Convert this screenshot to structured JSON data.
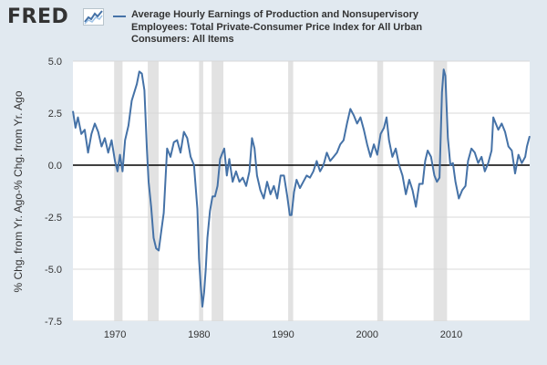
{
  "brand": {
    "logo_text": "FRED",
    "logo_icon": "fred-trend-line-icon"
  },
  "colors": {
    "line": "#4572a7",
    "recession": "#e2e2e2",
    "zero_line": "#000000",
    "plot_background": "#ffffff",
    "page_background": "#e1e9f0"
  },
  "chart_data": {
    "type": "line",
    "title": "",
    "xlabel": "",
    "ylabel": "% Chg. from Yr. Ago-% Chg. from Yr. Ago",
    "xlim": [
      1965.0,
      2019.33
    ],
    "ylim": [
      -7.5,
      5.0
    ],
    "x_ticks": [
      1970,
      1980,
      1990,
      2000,
      2010
    ],
    "x_tick_labels": [
      "1970",
      "1980",
      "1990",
      "2000",
      "2010"
    ],
    "y_ticks": [
      5.0,
      2.5,
      0.0,
      -2.5,
      -5.0,
      -7.5
    ],
    "y_tick_labels": [
      "5.0",
      "2.5",
      "0.0",
      "-2.5",
      "-5.0",
      "-7.5"
    ],
    "grid": "horizontal",
    "legend": "top",
    "reference_line": 0.0,
    "recessions": [
      [
        1969.9,
        1970.9
      ],
      [
        1973.9,
        1975.2
      ],
      [
        1980.0,
        1980.5
      ],
      [
        1981.5,
        1982.9
      ],
      [
        1990.6,
        1991.2
      ],
      [
        2001.2,
        2001.9
      ],
      [
        2007.9,
        2009.5
      ]
    ],
    "series": [
      {
        "name": "Average Hourly Earnings of Production and Nonsupervisory Employees: Total Private-Consumer Price Index for All Urban Consumers: All Items",
        "x": [
          1965.0,
          1965.3,
          1965.6,
          1966.0,
          1966.4,
          1966.8,
          1967.2,
          1967.6,
          1968.0,
          1968.4,
          1968.8,
          1969.2,
          1969.6,
          1970.0,
          1970.3,
          1970.6,
          1970.9,
          1971.2,
          1971.6,
          1972.0,
          1972.3,
          1972.6,
          1972.9,
          1973.2,
          1973.5,
          1973.8,
          1974.0,
          1974.3,
          1974.6,
          1974.9,
          1975.2,
          1975.5,
          1975.8,
          1976.2,
          1976.6,
          1977.0,
          1977.4,
          1977.8,
          1978.2,
          1978.6,
          1979.0,
          1979.4,
          1979.8,
          1980.0,
          1980.2,
          1980.4,
          1980.6,
          1980.8,
          1981.0,
          1981.3,
          1981.6,
          1981.9,
          1982.2,
          1982.5,
          1982.8,
          1983.0,
          1983.3,
          1983.6,
          1984.0,
          1984.4,
          1984.8,
          1985.2,
          1985.6,
          1986.0,
          1986.3,
          1986.6,
          1986.9,
          1987.3,
          1987.7,
          1988.1,
          1988.5,
          1988.9,
          1989.3,
          1989.7,
          1990.1,
          1990.5,
          1990.8,
          1991.0,
          1991.3,
          1991.6,
          1992.0,
          1992.4,
          1992.8,
          1993.2,
          1993.6,
          1994.0,
          1994.4,
          1994.8,
          1995.2,
          1995.6,
          1996.0,
          1996.4,
          1996.8,
          1997.2,
          1997.6,
          1998.0,
          1998.4,
          1998.8,
          1999.2,
          1999.6,
          2000.0,
          2000.4,
          2000.8,
          2001.2,
          2001.6,
          2002.0,
          2002.3,
          2002.6,
          2003.0,
          2003.4,
          2003.8,
          2004.2,
          2004.6,
          2005.0,
          2005.4,
          2005.8,
          2006.2,
          2006.6,
          2006.9,
          2007.2,
          2007.6,
          2008.0,
          2008.3,
          2008.6,
          2008.9,
          2009.1,
          2009.3,
          2009.6,
          2009.9,
          2010.2,
          2010.5,
          2010.9,
          2011.3,
          2011.7,
          2012.0,
          2012.4,
          2012.8,
          2013.2,
          2013.6,
          2014.0,
          2014.4,
          2014.8,
          2015.0,
          2015.3,
          2015.6,
          2016.0,
          2016.4,
          2016.8,
          2017.2,
          2017.6,
          2018.0,
          2018.4,
          2018.8,
          2019.0,
          2019.33
        ],
        "values": [
          2.6,
          1.8,
          2.3,
          1.5,
          1.7,
          0.6,
          1.5,
          2.0,
          1.6,
          0.9,
          1.3,
          0.6,
          1.2,
          0.2,
          -0.3,
          0.5,
          -0.3,
          1.2,
          1.9,
          3.1,
          3.5,
          3.9,
          4.5,
          4.4,
          3.6,
          0.8,
          -0.8,
          -2.0,
          -3.5,
          -4.0,
          -4.1,
          -3.2,
          -2.3,
          0.8,
          0.4,
          1.1,
          1.2,
          0.6,
          1.6,
          1.3,
          0.4,
          0.0,
          -2.1,
          -4.5,
          -5.8,
          -6.8,
          -6.1,
          -5.0,
          -3.5,
          -2.2,
          -1.5,
          -1.5,
          -1.0,
          0.3,
          0.6,
          0.8,
          -0.5,
          0.3,
          -0.8,
          -0.3,
          -0.8,
          -0.6,
          -1.0,
          -0.3,
          1.3,
          0.8,
          -0.5,
          -1.2,
          -1.6,
          -0.8,
          -1.4,
          -1.0,
          -1.6,
          -0.5,
          -0.5,
          -1.5,
          -2.4,
          -2.4,
          -1.3,
          -0.7,
          -1.1,
          -0.8,
          -0.5,
          -0.6,
          -0.3,
          0.2,
          -0.3,
          0.0,
          0.6,
          0.2,
          0.4,
          0.6,
          1.0,
          1.2,
          2.0,
          2.7,
          2.4,
          2.0,
          2.3,
          1.7,
          1.0,
          0.4,
          1.0,
          0.5,
          1.5,
          1.8,
          2.3,
          1.2,
          0.4,
          0.8,
          0.0,
          -0.5,
          -1.4,
          -0.7,
          -1.2,
          -2.0,
          -0.9,
          -0.9,
          0.2,
          0.7,
          0.4,
          -0.5,
          -0.8,
          -0.6,
          3.5,
          4.6,
          4.3,
          1.3,
          0.0,
          0.1,
          -0.8,
          -1.6,
          -1.2,
          -1.0,
          0.2,
          0.8,
          0.6,
          0.1,
          0.4,
          -0.3,
          0.1,
          0.7,
          2.3,
          2.0,
          1.7,
          2.0,
          1.6,
          0.9,
          0.7,
          -0.4,
          0.5,
          0.1,
          0.4,
          0.9,
          1.4
        ]
      }
    ]
  }
}
